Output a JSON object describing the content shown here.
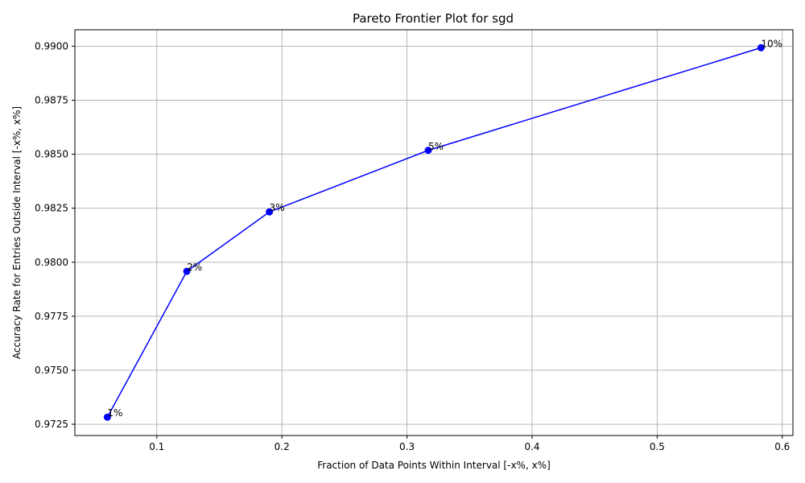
{
  "chart_data": {
    "type": "line",
    "title": "Pareto Frontier Plot for sgd",
    "xlabel": "Fraction of Data Points Within Interval [-x%, x%]",
    "ylabel": "Accuracy Rate for Entries Outside Interval [-x%, x%]",
    "xlim": [
      0.0345,
      0.6085
    ],
    "ylim": [
      0.97198,
      0.99076
    ],
    "xticks": [
      0.1,
      0.2,
      0.3,
      0.4,
      0.5,
      0.6
    ],
    "xtick_labels": [
      "0.1",
      "0.2",
      "0.3",
      "0.4",
      "0.5",
      "0.6"
    ],
    "yticks": [
      0.9725,
      0.975,
      0.9775,
      0.98,
      0.9825,
      0.985,
      0.9875,
      0.99
    ],
    "ytick_labels": [
      "0.9725",
      "0.9750",
      "0.9775",
      "0.9800",
      "0.9825",
      "0.9850",
      "0.9875",
      "0.9900"
    ],
    "grid": true,
    "color": "#0000ff",
    "series": [
      {
        "x": [
          0.0605,
          0.124,
          0.19,
          0.317,
          0.583
        ],
        "y": [
          0.97283,
          0.97958,
          0.98233,
          0.98518,
          0.98993
        ],
        "labels": [
          "1%",
          "2%",
          "3%",
          "5%",
          "10%"
        ]
      }
    ]
  }
}
